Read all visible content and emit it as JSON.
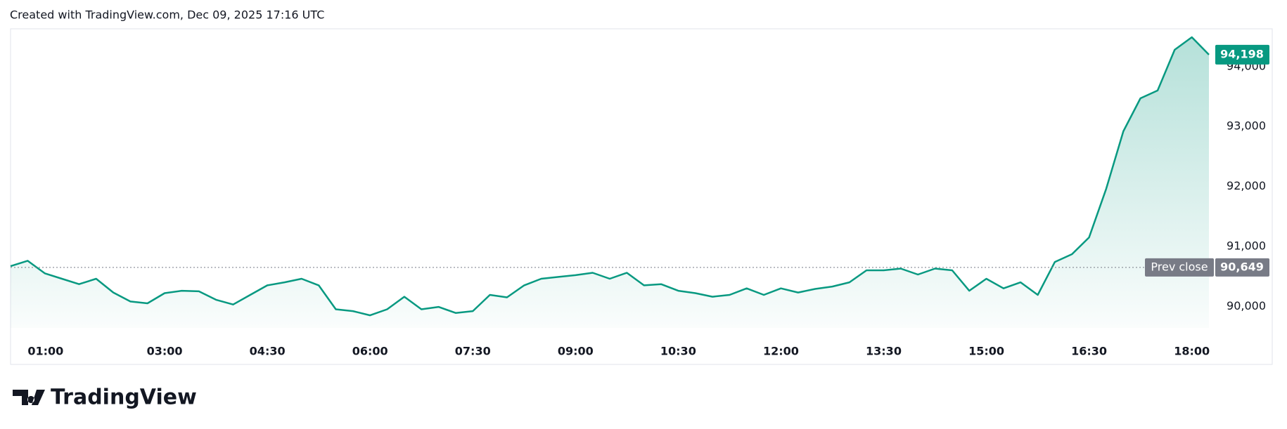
{
  "header": {
    "title": "Created with TradingView.com, Dec 09, 2025 17:16 UTC"
  },
  "logo": {
    "text": "TradingView"
  },
  "chart_data": {
    "type": "area",
    "color": "#089981",
    "x": [
      "00:45",
      "01:00",
      "01:15",
      "01:30",
      "01:45",
      "02:00",
      "02:15",
      "02:30",
      "02:45",
      "03:00",
      "03:15",
      "03:30",
      "03:45",
      "04:00",
      "04:15",
      "04:30",
      "04:45",
      "05:00",
      "05:15",
      "05:30",
      "05:45",
      "06:00",
      "06:15",
      "06:30",
      "06:45",
      "07:00",
      "07:15",
      "07:30",
      "07:45",
      "08:00",
      "08:15",
      "08:30",
      "08:45",
      "09:00",
      "09:15",
      "09:30",
      "09:45",
      "10:00",
      "10:15",
      "10:30",
      "10:45",
      "11:00",
      "11:15",
      "11:30",
      "11:45",
      "12:00",
      "12:15",
      "12:30",
      "12:45",
      "13:00",
      "13:15",
      "13:30",
      "13:45",
      "14:00",
      "14:15",
      "14:30",
      "14:45",
      "15:00",
      "15:15",
      "15:30",
      "15:45",
      "16:00",
      "16:15",
      "16:30",
      "16:45",
      "17:00",
      "17:15",
      "17:30",
      "17:45",
      "18:00",
      "18:15"
    ],
    "values": [
      90670,
      90760,
      90550,
      90460,
      90370,
      90460,
      90230,
      90080,
      90050,
      90220,
      90260,
      90250,
      90110,
      90030,
      90190,
      90350,
      90400,
      90460,
      90350,
      89950,
      89920,
      89850,
      89950,
      90160,
      89950,
      89990,
      89890,
      89920,
      90190,
      90150,
      90350,
      90460,
      90490,
      90520,
      90560,
      90460,
      90560,
      90350,
      90370,
      90260,
      90220,
      90160,
      90190,
      90300,
      90190,
      90300,
      90230,
      90290,
      90330,
      90400,
      90600,
      90600,
      90630,
      90530,
      90630,
      90600,
      90260,
      90460,
      90300,
      90400,
      90190,
      90740,
      90870,
      91150,
      91960,
      92920,
      93470,
      93600,
      94280,
      94490,
      94198
    ],
    "last_value_label": "94,198",
    "xticks": [
      "01:00",
      "03:00",
      "04:30",
      "06:00",
      "07:30",
      "09:00",
      "10:30",
      "12:00",
      "13:30",
      "15:00",
      "16:30",
      "18:00"
    ],
    "ylim": [
      89640,
      94630
    ],
    "yticks": [
      {
        "value": 90000,
        "label": "90,000"
      },
      {
        "value": 91000,
        "label": "91,000"
      },
      {
        "value": 92000,
        "label": "92,000"
      },
      {
        "value": 93000,
        "label": "93,000"
      },
      {
        "value": 94000,
        "label": "94,000"
      }
    ],
    "prev_close": {
      "name": "Prev close",
      "value": 90649,
      "label": "90,649",
      "color": "#787b86"
    }
  }
}
